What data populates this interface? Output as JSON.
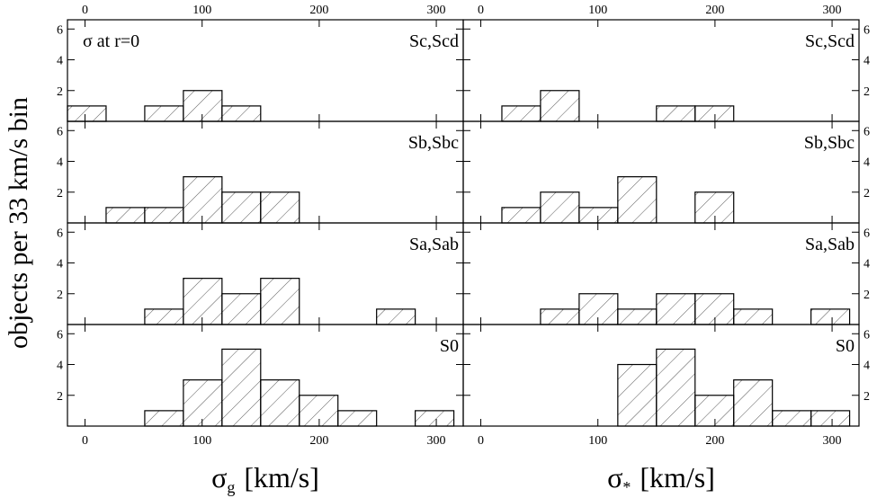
{
  "chart_data": [
    {
      "type": "histogram",
      "label": "Sc,Scd",
      "annotation": "σ at r=0",
      "ylabel": "objects per 33 km/s bin",
      "bins": [
        -15,
        18,
        51,
        84,
        117,
        150,
        183,
        216,
        249,
        282,
        315
      ],
      "values": [
        1,
        0,
        1,
        2,
        1,
        0,
        0,
        0,
        0,
        0
      ],
      "xlim": [
        -15,
        323
      ],
      "ylim": [
        0,
        6.6
      ],
      "xticks": [
        0,
        100,
        200,
        300
      ],
      "yticks": [
        2,
        4,
        6
      ]
    },
    {
      "type": "histogram",
      "label": "Sc,Scd",
      "bins": [
        -15,
        18,
        51,
        84,
        117,
        150,
        183,
        216,
        249,
        282,
        315
      ],
      "values": [
        0,
        1,
        2,
        0,
        0,
        1,
        1,
        0,
        0,
        0
      ],
      "xlim": [
        -15,
        323
      ],
      "ylim": [
        0,
        6.6
      ],
      "xticks": [
        0,
        100,
        200,
        300
      ],
      "yticks": [
        2,
        4,
        6
      ]
    },
    {
      "type": "histogram",
      "label": "Sb,Sbc",
      "bins": [
        -15,
        18,
        51,
        84,
        117,
        150,
        183,
        216,
        249,
        282,
        315
      ],
      "values": [
        0,
        1,
        1,
        3,
        2,
        2,
        0,
        0,
        0,
        0
      ],
      "xlim": [
        -15,
        323
      ],
      "ylim": [
        0,
        6.6
      ],
      "xticks": [
        0,
        100,
        200,
        300
      ],
      "yticks": [
        2,
        4,
        6
      ]
    },
    {
      "type": "histogram",
      "label": "Sb,Sbc",
      "bins": [
        -15,
        18,
        51,
        84,
        117,
        150,
        183,
        216,
        249,
        282,
        315
      ],
      "values": [
        0,
        1,
        2,
        1,
        3,
        0,
        2,
        0,
        0,
        0
      ],
      "xlim": [
        -15,
        323
      ],
      "ylim": [
        0,
        6.6
      ],
      "xticks": [
        0,
        100,
        200,
        300
      ],
      "yticks": [
        2,
        4,
        6
      ]
    },
    {
      "type": "histogram",
      "label": "Sa,Sab",
      "bins": [
        -15,
        18,
        51,
        84,
        117,
        150,
        183,
        216,
        249,
        282,
        315
      ],
      "values": [
        0,
        0,
        1,
        3,
        2,
        3,
        0,
        0,
        1,
        0
      ],
      "xlim": [
        -15,
        323
      ],
      "ylim": [
        0,
        6.6
      ],
      "xticks": [
        0,
        100,
        200,
        300
      ],
      "yticks": [
        2,
        4,
        6
      ]
    },
    {
      "type": "histogram",
      "label": "Sa,Sab",
      "bins": [
        -15,
        18,
        51,
        84,
        117,
        150,
        183,
        216,
        249,
        282,
        315
      ],
      "values": [
        0,
        0,
        1,
        2,
        1,
        2,
        2,
        1,
        0,
        1
      ],
      "xlim": [
        -15,
        323
      ],
      "ylim": [
        0,
        6.6
      ],
      "xticks": [
        0,
        100,
        200,
        300
      ],
      "yticks": [
        2,
        4,
        6
      ]
    },
    {
      "type": "histogram",
      "label": "S0",
      "xlabel_symbol": "σ",
      "xlabel_subscript": "g",
      "xlabel_unit": "[km/s]",
      "bins": [
        -15,
        18,
        51,
        84,
        117,
        150,
        183,
        216,
        249,
        282,
        315
      ],
      "values": [
        0,
        0,
        1,
        3,
        5,
        3,
        2,
        1,
        0,
        1
      ],
      "xlim": [
        -15,
        323
      ],
      "ylim": [
        0,
        6.6
      ],
      "xticks": [
        0,
        100,
        200,
        300
      ],
      "yticks": [
        2,
        4,
        6
      ]
    },
    {
      "type": "histogram",
      "label": "S0",
      "xlabel_symbol": "σ",
      "xlabel_subscript": "*",
      "xlabel_unit": "[km/s]",
      "bins": [
        -15,
        18,
        51,
        84,
        117,
        150,
        183,
        216,
        249,
        282,
        315
      ],
      "values": [
        0,
        0,
        0,
        0,
        4,
        5,
        2,
        3,
        1,
        1
      ],
      "xlim": [
        -15,
        323
      ],
      "ylim": [
        0,
        6.6
      ],
      "xticks": [
        0,
        100,
        200,
        300
      ],
      "yticks": [
        2,
        4,
        6
      ]
    }
  ]
}
